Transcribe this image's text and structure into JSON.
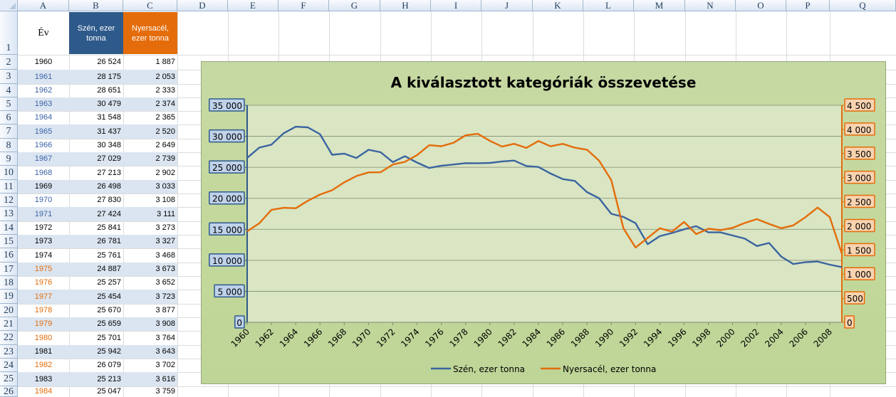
{
  "columns": [
    "A",
    "B",
    "C",
    "D",
    "E",
    "F",
    "G",
    "H",
    "I",
    "J",
    "K",
    "L",
    "M",
    "N",
    "O",
    "P",
    "Q"
  ],
  "rows_visible": [
    1,
    2,
    3,
    4,
    5,
    6,
    7,
    8,
    9,
    10,
    11,
    12,
    13,
    14,
    15,
    16,
    17,
    18,
    19,
    20,
    21,
    22,
    23,
    24,
    25,
    26
  ],
  "header": {
    "year": "Év",
    "coal": "Szén, ezer tonna",
    "steel": "Nyersacél, ezer tonna"
  },
  "table": [
    {
      "year": "1960",
      "coal": "26 524",
      "steel": "1 887"
    },
    {
      "year": "1961",
      "coal": "28 175",
      "steel": "2 053"
    },
    {
      "year": "1962",
      "coal": "28 651",
      "steel": "2 333"
    },
    {
      "year": "1963",
      "coal": "30 479",
      "steel": "2 374"
    },
    {
      "year": "1964",
      "coal": "31 548",
      "steel": "2 365"
    },
    {
      "year": "1965",
      "coal": "31 437",
      "steel": "2 520"
    },
    {
      "year": "1966",
      "coal": "30 348",
      "steel": "2 649"
    },
    {
      "year": "1967",
      "coal": "27 029",
      "steel": "2 739"
    },
    {
      "year": "1968",
      "coal": "27 213",
      "steel": "2 902"
    },
    {
      "year": "1969",
      "coal": "26 498",
      "steel": "3 033"
    },
    {
      "year": "1970",
      "coal": "27 830",
      "steel": "3 108"
    },
    {
      "year": "1971",
      "coal": "27 424",
      "steel": "3 111"
    },
    {
      "year": "1972",
      "coal": "25 841",
      "steel": "3 273"
    },
    {
      "year": "1973",
      "coal": "26 781",
      "steel": "3 327"
    },
    {
      "year": "1974",
      "coal": "25 761",
      "steel": "3 468"
    },
    {
      "year": "1975",
      "coal": "24 887",
      "steel": "3 673"
    },
    {
      "year": "1976",
      "coal": "25 257",
      "steel": "3 652"
    },
    {
      "year": "1977",
      "coal": "25 454",
      "steel": "3 723"
    },
    {
      "year": "1978",
      "coal": "25 670",
      "steel": "3 877"
    },
    {
      "year": "1979",
      "coal": "25 659",
      "steel": "3 908"
    },
    {
      "year": "1980",
      "coal": "25 701",
      "steel": "3 764"
    },
    {
      "year": "1981",
      "coal": "25 942",
      "steel": "3 643"
    },
    {
      "year": "1982",
      "coal": "26 079",
      "steel": "3 702"
    },
    {
      "year": "1983",
      "coal": "25 213",
      "steel": "3 616"
    },
    {
      "year": "1984",
      "coal": "25 047",
      "steel": "3 759"
    }
  ],
  "year_text_colors": [
    "#000000",
    "#3b63a8",
    "#3b63a8",
    "#3b63a8",
    "#3b63a8",
    "#3b63a8",
    "#3b63a8",
    "#3b63a8",
    "#3b63a8",
    "#000000",
    "#3b63a8",
    "#3b63a8",
    "#000000",
    "#000000",
    "#000000",
    "#e46c0a",
    "#e46c0a",
    "#e46c0a",
    "#e46c0a",
    "#e46c0a",
    "#e46c0a",
    "#000000",
    "#e46c0a",
    "#000000",
    "#e46c0a"
  ],
  "colors": {
    "coal_series": "#3a64a0",
    "steel_series": "#e46c0a",
    "header_blue": "#2e5a8b",
    "header_orange": "#e46c0a",
    "band_blue": "#dbe5f1"
  },
  "chart_data": {
    "type": "line",
    "title": "A kiválasztott kategóriák összevetése",
    "x": [
      1960,
      1961,
      1962,
      1963,
      1964,
      1965,
      1966,
      1967,
      1968,
      1969,
      1970,
      1971,
      1972,
      1973,
      1974,
      1975,
      1976,
      1977,
      1978,
      1979,
      1980,
      1981,
      1982,
      1983,
      1984,
      1985,
      1986,
      1987,
      1988,
      1989,
      1990,
      1991,
      1992,
      1993,
      1994,
      1995,
      1996,
      1997,
      1998,
      1999,
      2000,
      2001,
      2002,
      2003,
      2004,
      2005,
      2006,
      2007,
      2008,
      2009
    ],
    "x_tick_labels": [
      "1960",
      "1962",
      "1964",
      "1966",
      "1968",
      "1970",
      "1972",
      "1974",
      "1976",
      "1978",
      "1980",
      "1982",
      "1984",
      "1986",
      "1988",
      "1990",
      "1992",
      "1994",
      "1996",
      "1998",
      "2000",
      "2002",
      "2004",
      "2006",
      "2008"
    ],
    "series": [
      {
        "name": "Szén, ezer tonna",
        "axis": "left",
        "values": [
          26524,
          28175,
          28651,
          30479,
          31548,
          31437,
          30348,
          27029,
          27213,
          26498,
          27830,
          27424,
          25841,
          26781,
          25761,
          24887,
          25257,
          25454,
          25670,
          25659,
          25701,
          25942,
          26079,
          25213,
          25047,
          24000,
          23100,
          22800,
          21000,
          20000,
          17500,
          17000,
          16000,
          12600,
          13900,
          14400,
          15000,
          15500,
          14500,
          14500,
          14000,
          13500,
          12300,
          12800,
          10600,
          9400,
          9700,
          9800,
          9300,
          8900
        ]
      },
      {
        "name": "Nyersacél, ezer tonna",
        "axis": "right",
        "values": [
          1887,
          2053,
          2333,
          2374,
          2365,
          2520,
          2649,
          2739,
          2902,
          3033,
          3108,
          3111,
          3273,
          3327,
          3468,
          3673,
          3652,
          3723,
          3877,
          3908,
          3764,
          3643,
          3702,
          3616,
          3759,
          3650,
          3700,
          3620,
          3580,
          3350,
          2950,
          1950,
          1550,
          1750,
          1950,
          1880,
          2080,
          1830,
          1940,
          1910,
          1960,
          2060,
          2140,
          2040,
          1950,
          2010,
          2180,
          2380,
          2180,
          1420
        ]
      }
    ],
    "y_left": {
      "ticks": [
        "0",
        "5 000",
        "10 000",
        "15 000",
        "20 000",
        "25 000",
        "30 000",
        "35 000"
      ],
      "ylim": [
        0,
        35000
      ]
    },
    "y_right": {
      "ticks": [
        "0",
        "500",
        "1 000",
        "1 500",
        "2 000",
        "2 500",
        "3 000",
        "3 500",
        "4 000",
        "4 500"
      ],
      "ylim": [
        0,
        4500
      ]
    },
    "legend_position": "bottom",
    "grid": true
  }
}
